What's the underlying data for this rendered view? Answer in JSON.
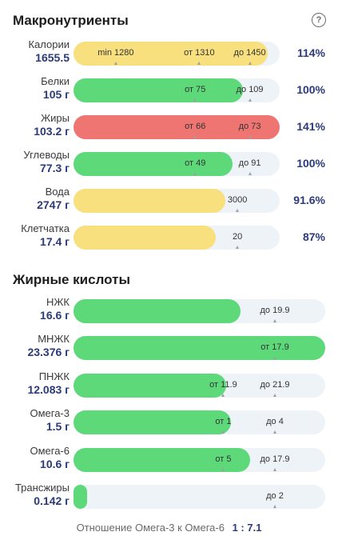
{
  "macros": {
    "title": "Макронутриенты",
    "help_icon": "?",
    "rows": [
      {
        "label": "Калории",
        "value": "1655.5",
        "percent": "114%",
        "color": "yellow",
        "fill": 0.94,
        "marks": [
          {
            "text": "min 1280",
            "pos": 0.205
          },
          {
            "text": "от 1310",
            "pos": 0.61
          },
          {
            "text": "до 1450",
            "pos": 0.855
          }
        ]
      },
      {
        "label": "Белки",
        "value": "105 г",
        "percent": "100%",
        "color": "green",
        "fill": 0.82,
        "marks": [
          {
            "text": "от 75",
            "pos": 0.59
          },
          {
            "text": "до 109",
            "pos": 0.855
          }
        ]
      },
      {
        "label": "Жиры",
        "value": "103.2 г",
        "percent": "141%",
        "color": "red",
        "fill": 1.0,
        "marks": [
          {
            "text": "от 66",
            "pos": 0.59
          },
          {
            "text": "до 73",
            "pos": 0.855
          }
        ]
      },
      {
        "label": "Углеводы",
        "value": "77.3 г",
        "percent": "100%",
        "color": "green",
        "fill": 0.77,
        "marks": [
          {
            "text": "от 49",
            "pos": 0.59
          },
          {
            "text": "до 91",
            "pos": 0.855
          }
        ]
      },
      {
        "label": "Вода",
        "value": "2747 г",
        "percent": "91.6%",
        "color": "yellow",
        "fill": 0.735,
        "marks": [
          {
            "text": "3000",
            "pos": 0.795
          }
        ]
      },
      {
        "label": "Клетчатка",
        "value": "17.4 г",
        "percent": "87%",
        "color": "yellow",
        "fill": 0.69,
        "marks": [
          {
            "text": "20",
            "pos": 0.795
          }
        ]
      }
    ]
  },
  "fatty": {
    "title": "Жирные кислоты",
    "rows": [
      {
        "label": "НЖК",
        "value": "16.6 г",
        "color": "green",
        "fill": 0.665,
        "marks": [
          {
            "text": "до 19.9",
            "pos": 0.8
          }
        ]
      },
      {
        "label": "МНЖК",
        "value": "23.376 г",
        "color": "green",
        "fill": 1.0,
        "marks": [
          {
            "text": "от 17.9",
            "pos": 0.8
          }
        ]
      },
      {
        "label": "ПНЖК",
        "value": "12.083 г",
        "color": "green",
        "fill": 0.605,
        "marks": [
          {
            "text": "от 11.9",
            "pos": 0.595
          },
          {
            "text": "до 21.9",
            "pos": 0.8
          }
        ]
      },
      {
        "label": "Омега-3",
        "value": "1.5 г",
        "color": "green",
        "fill": 0.625,
        "marks": [
          {
            "text": "от 1",
            "pos": 0.595
          },
          {
            "text": "до 4",
            "pos": 0.8
          }
        ]
      },
      {
        "label": "Омега-6",
        "value": "10.6 г",
        "color": "green",
        "fill": 0.7,
        "marks": [
          {
            "text": "от 5",
            "pos": 0.595
          },
          {
            "text": "до 17.9",
            "pos": 0.8
          }
        ]
      },
      {
        "label": "Трансжиры",
        "value": "0.142 г",
        "color": "green",
        "fill": 0.055,
        "marks": [
          {
            "text": "до 2",
            "pos": 0.8
          }
        ]
      }
    ]
  },
  "ratio": {
    "label": "Отношение Омега-3 к Омега-6",
    "value": "1 : 7.1"
  }
}
